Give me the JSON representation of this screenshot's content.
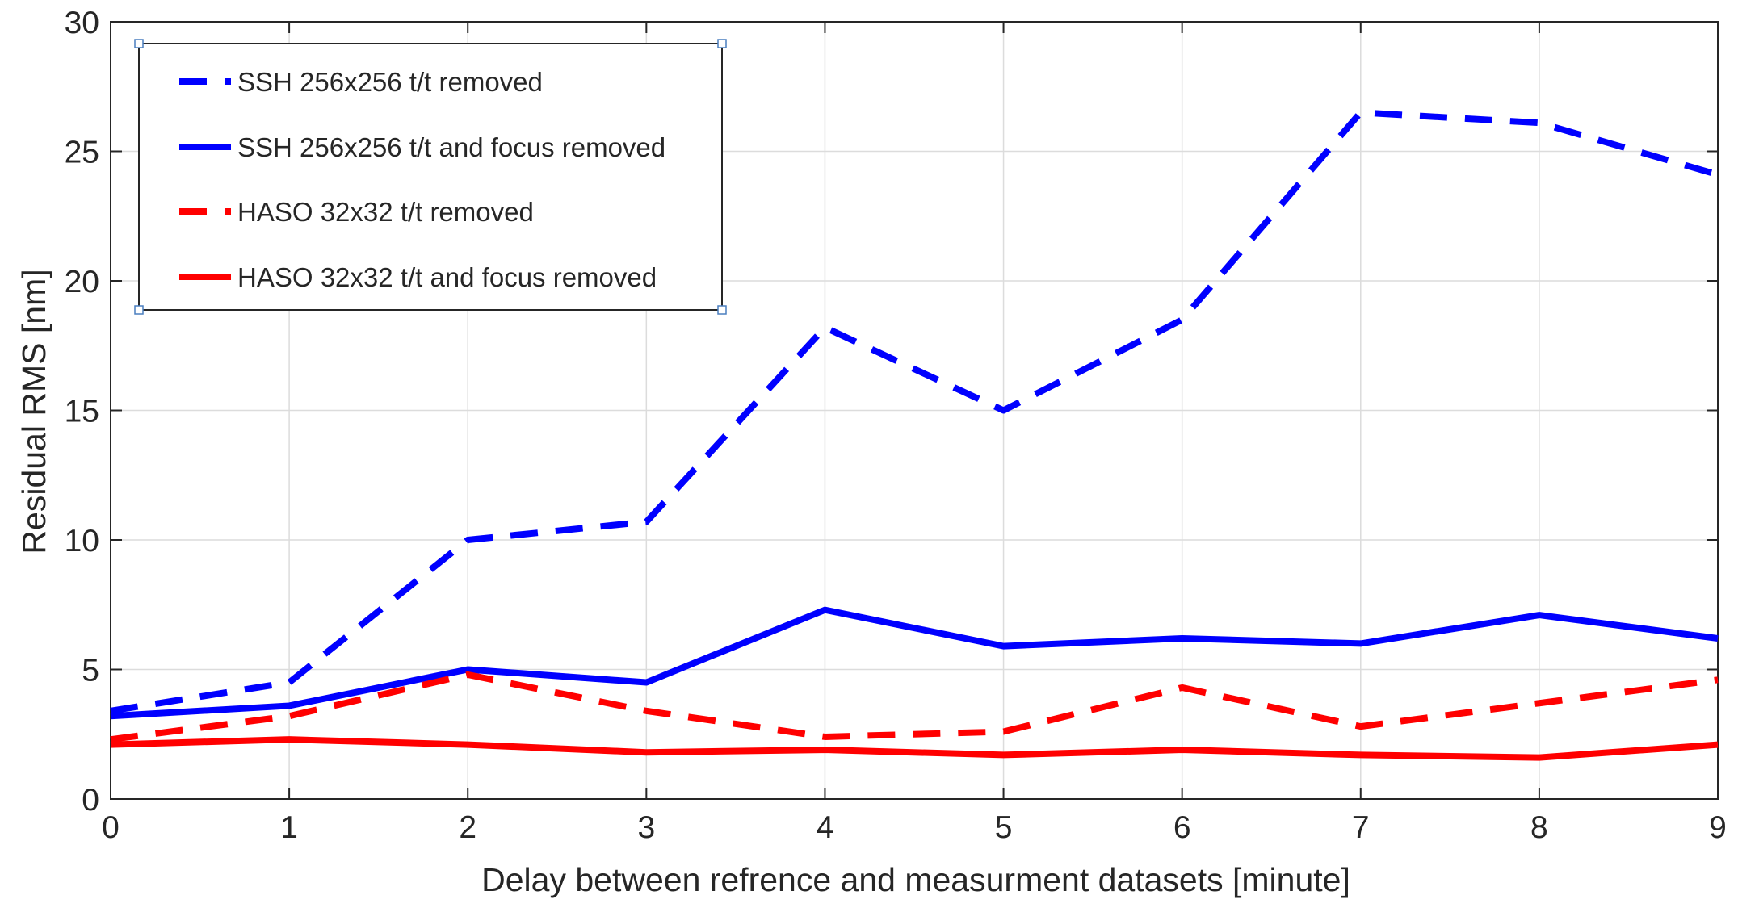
{
  "chart_data": {
    "type": "line",
    "xlabel": "Delay between refrence and measurment datasets [minute]",
    "ylabel": "Residual RMS [nm]",
    "xlim": [
      0,
      9
    ],
    "ylim": [
      0,
      30
    ],
    "x_ticks": [
      "0",
      "1",
      "2",
      "3",
      "4",
      "5",
      "6",
      "7",
      "8",
      "9"
    ],
    "y_ticks": [
      "0",
      "5",
      "10",
      "15",
      "20",
      "25",
      "30"
    ],
    "x": [
      0,
      1,
      2,
      3,
      4,
      5,
      6,
      7,
      8,
      9
    ],
    "grid": true,
    "legend_position": "top-left",
    "series": [
      {
        "name": "SSH 256x256 t/t removed",
        "color": "#0000ff",
        "style": "dashed",
        "values": [
          3.4,
          4.5,
          10.0,
          10.7,
          18.2,
          15.0,
          18.5,
          26.5,
          26.1,
          24.1
        ]
      },
      {
        "name": "SSH 256x256 t/t and focus removed",
        "color": "#0000ff",
        "style": "solid",
        "values": [
          3.2,
          3.6,
          5.0,
          4.5,
          7.3,
          5.9,
          6.2,
          6.0,
          7.1,
          6.2
        ]
      },
      {
        "name": "HASO 32x32 t/t removed",
        "color": "#ff0000",
        "style": "dashed",
        "values": [
          2.3,
          3.2,
          4.8,
          3.4,
          2.4,
          2.6,
          4.3,
          2.8,
          3.7,
          4.6
        ]
      },
      {
        "name": "HASO 32x32 t/t and focus removed",
        "color": "#ff0000",
        "style": "solid",
        "values": [
          2.1,
          2.3,
          2.1,
          1.8,
          1.9,
          1.7,
          1.9,
          1.7,
          1.6,
          2.1
        ]
      }
    ]
  }
}
